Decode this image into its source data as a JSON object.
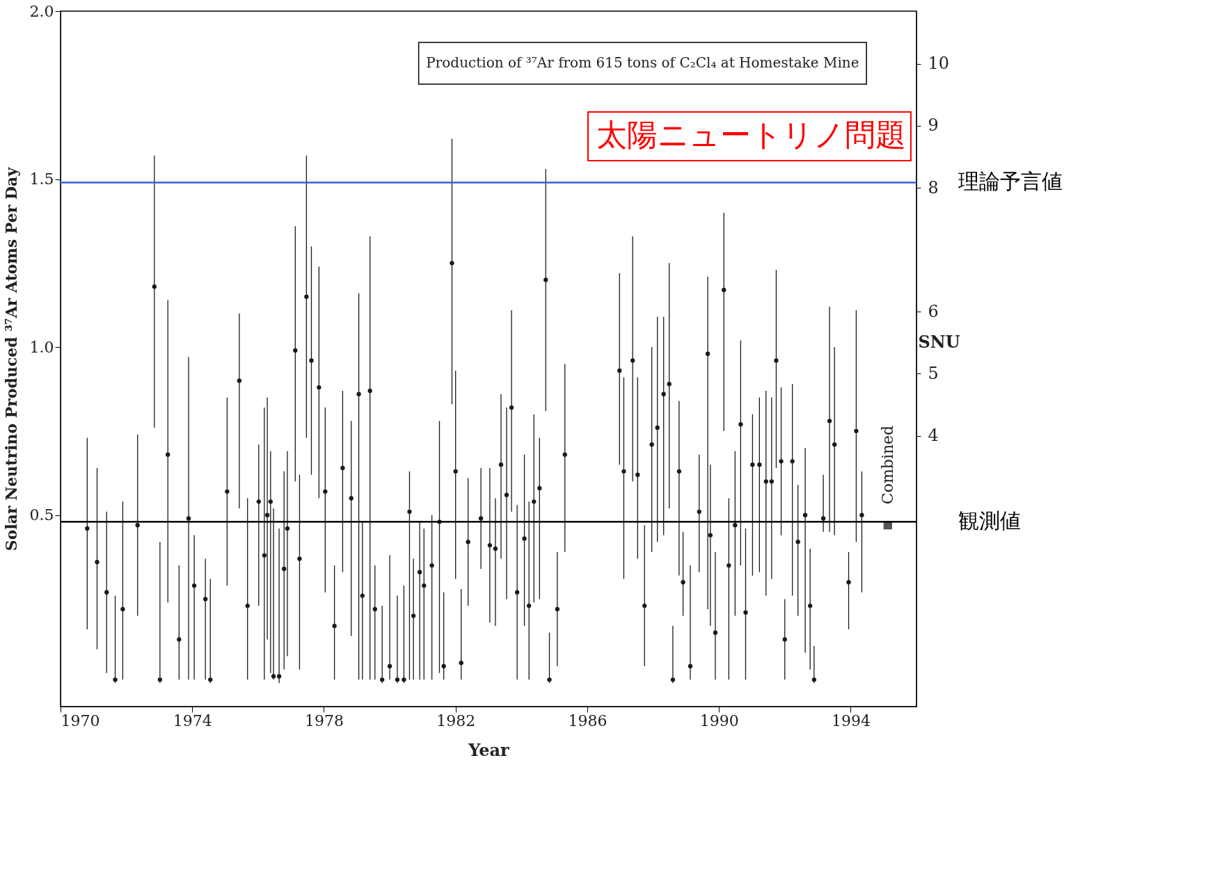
{
  "chart_data": {
    "type": "scatter",
    "title": "Production of ³⁷Ar from 615 tons of C₂Cl₄ at Homestake Mine",
    "xlabel": "Year",
    "ylabel": "Solar Neutrino Produced ³⁷Ar Atoms Per Day",
    "y2label": "SNU",
    "xlim": [
      1970,
      1996
    ],
    "xticks": [
      1970,
      1974,
      1978,
      1982,
      1986,
      1990,
      1994
    ],
    "ylim": [
      -0.07,
      2.0
    ],
    "yticks": [
      0.5,
      {
        "value": 1,
        "label": "1.0"
      },
      1.5,
      {
        "value": 2,
        "label": "2.0"
      }
    ],
    "y2lim": [
      -0.37,
      10.85
    ],
    "y2ticks": [
      4,
      5,
      6,
      8,
      9,
      10
    ],
    "grid": false,
    "marker": "circle",
    "series": [
      {
        "color": "#1a1a1a",
        "x": [
          1970.81,
          1971.11,
          1971.4,
          1971.66,
          1971.89,
          1972.34,
          1972.85,
          1973.02,
          1973.26,
          1973.6,
          1973.89,
          1974.06,
          1974.4,
          1974.55,
          1975.06,
          1975.43,
          1975.68,
          1976.02,
          1976.19,
          1976.28,
          1976.38,
          1976.47,
          1976.64,
          1976.79,
          1976.89,
          1977.13,
          1977.26,
          1977.47,
          1977.62,
          1977.85,
          1978.04,
          1978.32,
          1978.57,
          1978.83,
          1979.06,
          1979.17,
          1979.4,
          1979.55,
          1979.77,
          1980.0,
          1980.23,
          1980.43,
          1980.6,
          1980.72,
          1980.91,
          1981.04,
          1981.28,
          1981.51,
          1981.64,
          1981.89,
          1982.0,
          1982.17,
          1982.38,
          1982.77,
          1983.04,
          1983.21,
          1983.38,
          1983.55,
          1983.7,
          1983.87,
          1984.09,
          1984.23,
          1984.38,
          1984.55,
          1984.74,
          1984.85,
          1985.09,
          1985.32,
          1986.98,
          1987.11,
          1987.38,
          1987.53,
          1987.74,
          1987.96,
          1988.13,
          1988.32,
          1988.49,
          1988.6,
          1988.79,
          1988.91,
          1989.13,
          1989.4,
          1989.66,
          1989.74,
          1989.89,
          1990.15,
          1990.3,
          1990.49,
          1990.66,
          1990.81,
          1991.02,
          1991.23,
          1991.43,
          1991.6,
          1991.74,
          1991.89,
          1992.0,
          1992.23,
          1992.4,
          1992.62,
          1992.77,
          1992.89,
          1993.17,
          1993.36,
          1993.51,
          1993.94,
          1994.17,
          1994.34
        ],
        "values": [
          0.46,
          0.36,
          0.27,
          0.01,
          0.22,
          0.47,
          1.18,
          0.01,
          0.68,
          0.13,
          0.49,
          0.29,
          0.25,
          0.01,
          0.57,
          0.9,
          0.23,
          0.54,
          0.38,
          0.5,
          0.54,
          0.02,
          0.02,
          0.34,
          0.46,
          0.99,
          0.37,
          1.15,
          0.96,
          0.88,
          0.57,
          0.17,
          0.64,
          0.55,
          0.86,
          0.26,
          0.87,
          0.22,
          0.01,
          0.05,
          0.01,
          0.01,
          0.51,
          0.2,
          0.33,
          0.29,
          0.35,
          0.48,
          0.05,
          1.25,
          0.63,
          0.06,
          0.42,
          0.49,
          0.41,
          0.4,
          0.65,
          0.56,
          0.82,
          0.27,
          0.43,
          0.23,
          0.54,
          0.58,
          1.2,
          0.01,
          0.22,
          0.68,
          0.93,
          0.63,
          0.96,
          0.62,
          0.23,
          0.71,
          0.76,
          0.86,
          0.89,
          0.01,
          0.63,
          0.3,
          0.05,
          0.51,
          0.98,
          0.44,
          0.15,
          1.17,
          0.35,
          0.47,
          0.77,
          0.21,
          0.65,
          0.65,
          0.6,
          0.6,
          0.96,
          0.66,
          0.13,
          0.66,
          0.42,
          0.5,
          0.23,
          0.01,
          0.49,
          0.78,
          0.71,
          0.3,
          0.75,
          0.5
        ],
        "errors": [
          [
            0.16,
            0.73
          ],
          [
            0.1,
            0.64
          ],
          [
            0.03,
            0.51
          ],
          [
            0,
            0.26
          ],
          [
            0.01,
            0.54
          ],
          [
            0.2,
            0.74
          ],
          [
            0.76,
            1.57
          ],
          [
            0,
            0.42
          ],
          [
            0.24,
            1.14
          ],
          [
            0.01,
            0.35
          ],
          [
            0.01,
            0.97
          ],
          [
            0.01,
            0.44
          ],
          [
            0.01,
            0.37
          ],
          [
            0,
            0.31
          ],
          [
            0.29,
            0.85
          ],
          [
            0.52,
            1.1
          ],
          [
            0.01,
            0.55
          ],
          [
            0.23,
            0.71
          ],
          [
            0.01,
            0.82
          ],
          [
            0.13,
            0.85
          ],
          [
            0.03,
            0.69
          ],
          [
            0.01,
            0.52
          ],
          [
            0,
            0.46
          ],
          [
            0.04,
            0.63
          ],
          [
            0.08,
            0.69
          ],
          [
            0.6,
            1.36
          ],
          [
            0.04,
            0.62
          ],
          [
            0.73,
            1.57
          ],
          [
            0.62,
            1.3
          ],
          [
            0.55,
            1.24
          ],
          [
            0.27,
            0.82
          ],
          [
            0.01,
            0.35
          ],
          [
            0.33,
            0.87
          ],
          [
            0.14,
            0.78
          ],
          [
            0.01,
            1.16
          ],
          [
            0.01,
            0.48
          ],
          [
            0.01,
            1.33
          ],
          [
            0.01,
            0.35
          ],
          [
            0,
            0.23
          ],
          [
            0.01,
            0.38
          ],
          [
            0,
            0.26
          ],
          [
            0,
            0.29
          ],
          [
            0.01,
            0.63
          ],
          [
            0.01,
            0.37
          ],
          [
            0.01,
            0.48
          ],
          [
            0.01,
            0.46
          ],
          [
            0.01,
            0.5
          ],
          [
            0.03,
            0.78
          ],
          [
            0.01,
            0.27
          ],
          [
            0.83,
            1.62
          ],
          [
            0.31,
            0.93
          ],
          [
            0.01,
            0.28
          ],
          [
            0.23,
            0.61
          ],
          [
            0.34,
            0.64
          ],
          [
            0.18,
            0.64
          ],
          [
            0.17,
            0.55
          ],
          [
            0.37,
            0.86
          ],
          [
            0.25,
            0.82
          ],
          [
            0.51,
            1.11
          ],
          [
            0.01,
            0.53
          ],
          [
            0.17,
            0.68
          ],
          [
            0.01,
            0.54
          ],
          [
            0.24,
            0.8
          ],
          [
            0.25,
            0.73
          ],
          [
            0.81,
            1.53
          ],
          [
            0,
            0.15
          ],
          [
            0.05,
            0.39
          ],
          [
            0.39,
            0.95
          ],
          [
            0.65,
            1.22
          ],
          [
            0.31,
            0.91
          ],
          [
            0.6,
            1.33
          ],
          [
            0.37,
            0.91
          ],
          [
            0.05,
            0.47
          ],
          [
            0.39,
            1.0
          ],
          [
            0.42,
            1.09
          ],
          [
            0.44,
            1.09
          ],
          [
            0.52,
            1.25
          ],
          [
            0,
            0.17
          ],
          [
            0.32,
            0.84
          ],
          [
            0.2,
            0.45
          ],
          [
            0.01,
            0.35
          ],
          [
            0.33,
            0.68
          ],
          [
            0.22,
            1.21
          ],
          [
            0.17,
            0.65
          ],
          [
            0.01,
            0.39
          ],
          [
            0.75,
            1.4
          ],
          [
            0.01,
            0.55
          ],
          [
            0.2,
            0.69
          ],
          [
            0.35,
            1.02
          ],
          [
            0.01,
            0.46
          ],
          [
            0.32,
            0.8
          ],
          [
            0.33,
            0.85
          ],
          [
            0.26,
            0.87
          ],
          [
            0.31,
            0.85
          ],
          [
            0.64,
            1.23
          ],
          [
            0.44,
            0.88
          ],
          [
            0.01,
            0.25
          ],
          [
            0.26,
            0.89
          ],
          [
            0.2,
            0.59
          ],
          [
            0.09,
            0.7
          ],
          [
            0.04,
            0.4
          ],
          [
            0,
            0.11
          ],
          [
            0.45,
            0.62
          ],
          [
            0.45,
            1.12
          ],
          [
            0.44,
            1.0
          ],
          [
            0.16,
            0.39
          ],
          [
            0.42,
            1.11
          ],
          [
            0.27,
            0.63
          ]
        ]
      },
      {
        "color": "#555555",
        "marker": "square",
        "x": [
          1995.13
        ],
        "values": [
          0.47
        ]
      }
    ],
    "ref_lines": [
      {
        "axis": "y",
        "value": 1.49,
        "label": "理論予言値",
        "color": "#3a5fcd"
      },
      {
        "axis": "y",
        "value": 0.48,
        "label": "観測値",
        "color": "#000000"
      }
    ],
    "annotations": [
      {
        "text": "Combined",
        "x": 1995.13,
        "y": 0.47
      },
      "太陽ニュートリノ問題"
    ]
  }
}
